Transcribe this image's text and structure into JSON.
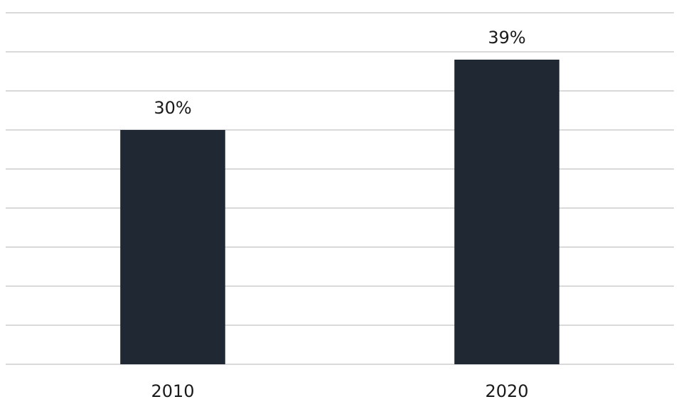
{
  "chart_data": {
    "type": "bar",
    "categories": [
      "2010",
      "2020"
    ],
    "values": [
      30,
      39
    ],
    "value_labels": [
      "30%",
      "39%"
    ],
    "color": "#202833",
    "ylim": [
      0,
      45
    ],
    "yticks": [
      0,
      5,
      10,
      15,
      20,
      25,
      30,
      35,
      40,
      45
    ],
    "grid": true
  }
}
